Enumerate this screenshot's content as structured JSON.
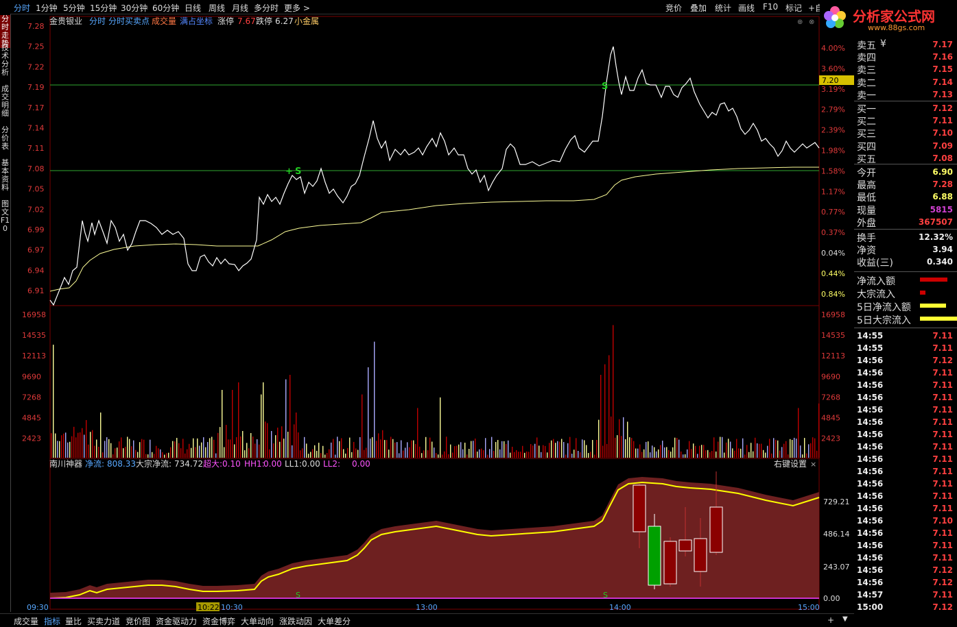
{
  "topbar": {
    "periods": [
      "分时",
      "1分钟",
      "5分钟",
      "15分钟",
      "30分钟",
      "60分钟",
      "日线",
      "周线",
      "月线",
      "多分时",
      "更多 >"
    ],
    "right_items": [
      "竞价",
      "叠加",
      "统计",
      "画线",
      "F10",
      "标记",
      "+自"
    ]
  },
  "left_tabs": [
    "分时走势",
    "技术分析",
    "成交明细",
    "分价表",
    "基本资料",
    "图文F10"
  ],
  "logo": {
    "text": "分析家公式网",
    "url_text": "www.88gs.com"
  },
  "legend": {
    "stock": "金贵银业",
    "items": [
      "分时",
      "分时买卖点",
      "成交量",
      "满占坐标"
    ],
    "limit_up_label": "涨停",
    "limit_up": "7.67",
    "limit_down_label": "跌停",
    "limit_down": "6.27",
    "sector": "小金属"
  },
  "price_axis": {
    "left": [
      "7.28",
      "7.25",
      "7.22",
      "7.19",
      "7.17",
      "7.14",
      "7.11",
      "7.08",
      "7.05",
      "7.02",
      "6.99",
      "6.97",
      "6.94",
      "6.91"
    ],
    "right": [
      "4.00%",
      "3.60%",
      "3.19%",
      "2.79%",
      "2.39%",
      "1.98%",
      "1.58%",
      "1.17%",
      "0.77%",
      "0.37%",
      "0.04%",
      "0.44%",
      "0.84%"
    ],
    "marker": "7.20"
  },
  "volume_axis": [
    "16958",
    "14535",
    "12113",
    "9690",
    "7268",
    "4845",
    "2423"
  ],
  "indicator": {
    "name": "南川神器",
    "fields": [
      {
        "label": "净流:",
        "value": "808.33"
      },
      {
        "label": "大宗净流:",
        "value": "734.72"
      },
      {
        "label": "超大:",
        "value": "0.10"
      },
      {
        "label": "HH1:",
        "value": "0.00"
      },
      {
        "label": "LL1:",
        "value": "0.00"
      },
      {
        "label": "LL2:",
        "value": "0.00"
      }
    ],
    "settings": "右键设置",
    "axis": [
      "729.21",
      "486.14",
      "243.07",
      "0.00"
    ],
    "signal": "S"
  },
  "time_axis": [
    "09:30",
    "10:22",
    "10:30",
    "13:00",
    "14:00",
    "15:00"
  ],
  "signals": {
    "buy_sell": "S",
    "plus": "+"
  },
  "orderbook": [
    {
      "label": "卖五",
      "sym": "¥",
      "price": "7.17"
    },
    {
      "label": "卖四",
      "sym": "",
      "price": "7.16"
    },
    {
      "label": "卖三",
      "sym": "",
      "price": "7.15"
    },
    {
      "label": "卖二",
      "sym": "",
      "price": "7.14"
    },
    {
      "label": "卖一",
      "sym": "",
      "price": "7.13"
    },
    {
      "label": "买一",
      "sym": "",
      "price": "7.12"
    },
    {
      "label": "买二",
      "sym": "",
      "price": "7.11"
    },
    {
      "label": "买三",
      "sym": "",
      "price": "7.10"
    },
    {
      "label": "买四",
      "sym": "",
      "price": "7.09"
    },
    {
      "label": "买五",
      "sym": "",
      "price": "7.08"
    }
  ],
  "stats": [
    {
      "label": "今开",
      "value": "6.90",
      "color": "#ffff66"
    },
    {
      "label": "最高",
      "value": "7.28",
      "color": "#ff4040"
    },
    {
      "label": "最低",
      "value": "6.88",
      "color": "#ffff66"
    },
    {
      "label": "现量",
      "value": "5815",
      "color": "#d040d0"
    },
    {
      "label": "外盘",
      "value": "367507",
      "color": "#ff4040"
    },
    {
      "label": "换手",
      "value": "12.32%",
      "color": "#eeeeee"
    },
    {
      "label": "净资",
      "value": "3.94",
      "color": "#eeeeee"
    },
    {
      "label": "收益(三)",
      "value": "0.340",
      "color": "#eeeeee"
    }
  ],
  "flows": [
    {
      "label": "净流入额",
      "color": "#cc0000"
    },
    {
      "label": "大宗流入",
      "color": "#cc0000"
    },
    {
      "label": "5日净流入额",
      "color": "#ffff33"
    },
    {
      "label": "5日大宗流入",
      "color": "#ffff33"
    }
  ],
  "ticks": [
    {
      "t": "14:55",
      "p": "7.11"
    },
    {
      "t": "14:55",
      "p": "7.11"
    },
    {
      "t": "14:56",
      "p": "7.12"
    },
    {
      "t": "14:56",
      "p": "7.11"
    },
    {
      "t": "14:56",
      "p": "7.11"
    },
    {
      "t": "14:56",
      "p": "7.11"
    },
    {
      "t": "14:56",
      "p": "7.11"
    },
    {
      "t": "14:56",
      "p": "7.11"
    },
    {
      "t": "14:56",
      "p": "7.11"
    },
    {
      "t": "14:56",
      "p": "7.11"
    },
    {
      "t": "14:56",
      "p": "7.11"
    },
    {
      "t": "14:56",
      "p": "7.11"
    },
    {
      "t": "14:56",
      "p": "7.11"
    },
    {
      "t": "14:56",
      "p": "7.11"
    },
    {
      "t": "14:56",
      "p": "7.11"
    },
    {
      "t": "14:56",
      "p": "7.10"
    },
    {
      "t": "14:56",
      "p": "7.11"
    },
    {
      "t": "14:56",
      "p": "7.11"
    },
    {
      "t": "14:56",
      "p": "7.11"
    },
    {
      "t": "14:56",
      "p": "7.12"
    },
    {
      "t": "14:56",
      "p": "7.12"
    },
    {
      "t": "14:57",
      "p": "7.11"
    },
    {
      "t": "15:00",
      "p": "7.12"
    }
  ],
  "bottom_tabs": [
    "成交量",
    "指标",
    "量比",
    "买卖力道",
    "竞价图",
    "资金驱动力",
    "资金博弈",
    "大单动向",
    "涨跌动因",
    "大单差分"
  ],
  "bottom_right": [
    "+",
    "▼"
  ],
  "colors": {
    "price_line": "#ffffff",
    "avg_line": "#ffff99",
    "up": "#c00000",
    "down": "#aaaaff",
    "neutral": "#ffff99",
    "flow_area": "#6e2020",
    "flow_line": "#ffff00"
  }
}
